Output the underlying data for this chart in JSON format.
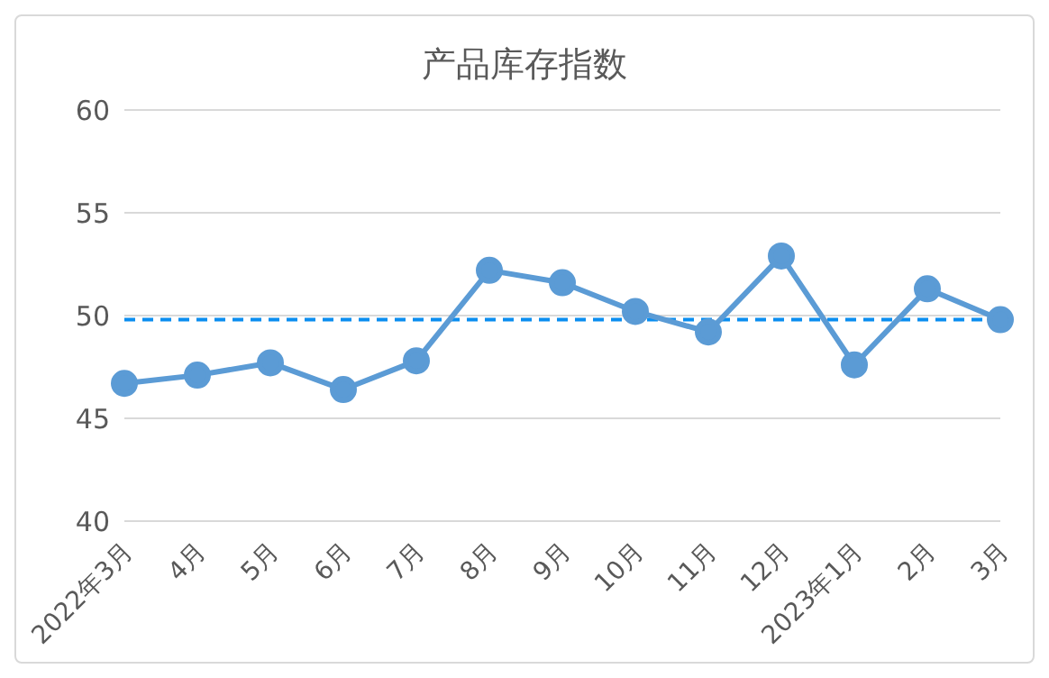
{
  "chart_data": {
    "type": "line",
    "title": "产品库存指数",
    "categories": [
      "2022年3月",
      "4月",
      "5月",
      "6月",
      "7月",
      "8月",
      "9月",
      "10月",
      "11月",
      "12月",
      "2023年1月",
      "2月",
      "3月"
    ],
    "series": [
      {
        "color": "#5b9bd5",
        "values": [
          46.7,
          47.1,
          47.7,
          46.4,
          47.8,
          52.2,
          51.6,
          50.2,
          49.2,
          52.9,
          47.6,
          51.3,
          49.8
        ]
      }
    ],
    "ylim": [
      40,
      60
    ],
    "yticks": [
      40,
      45,
      50,
      55,
      60
    ],
    "grid": "y",
    "marker": "circle",
    "line_style": "solid",
    "legend": false,
    "ref_lines": [
      {
        "axis": "y",
        "value": 49.8,
        "color": "#0b8ef0",
        "line_style": "dashed"
      }
    ]
  }
}
